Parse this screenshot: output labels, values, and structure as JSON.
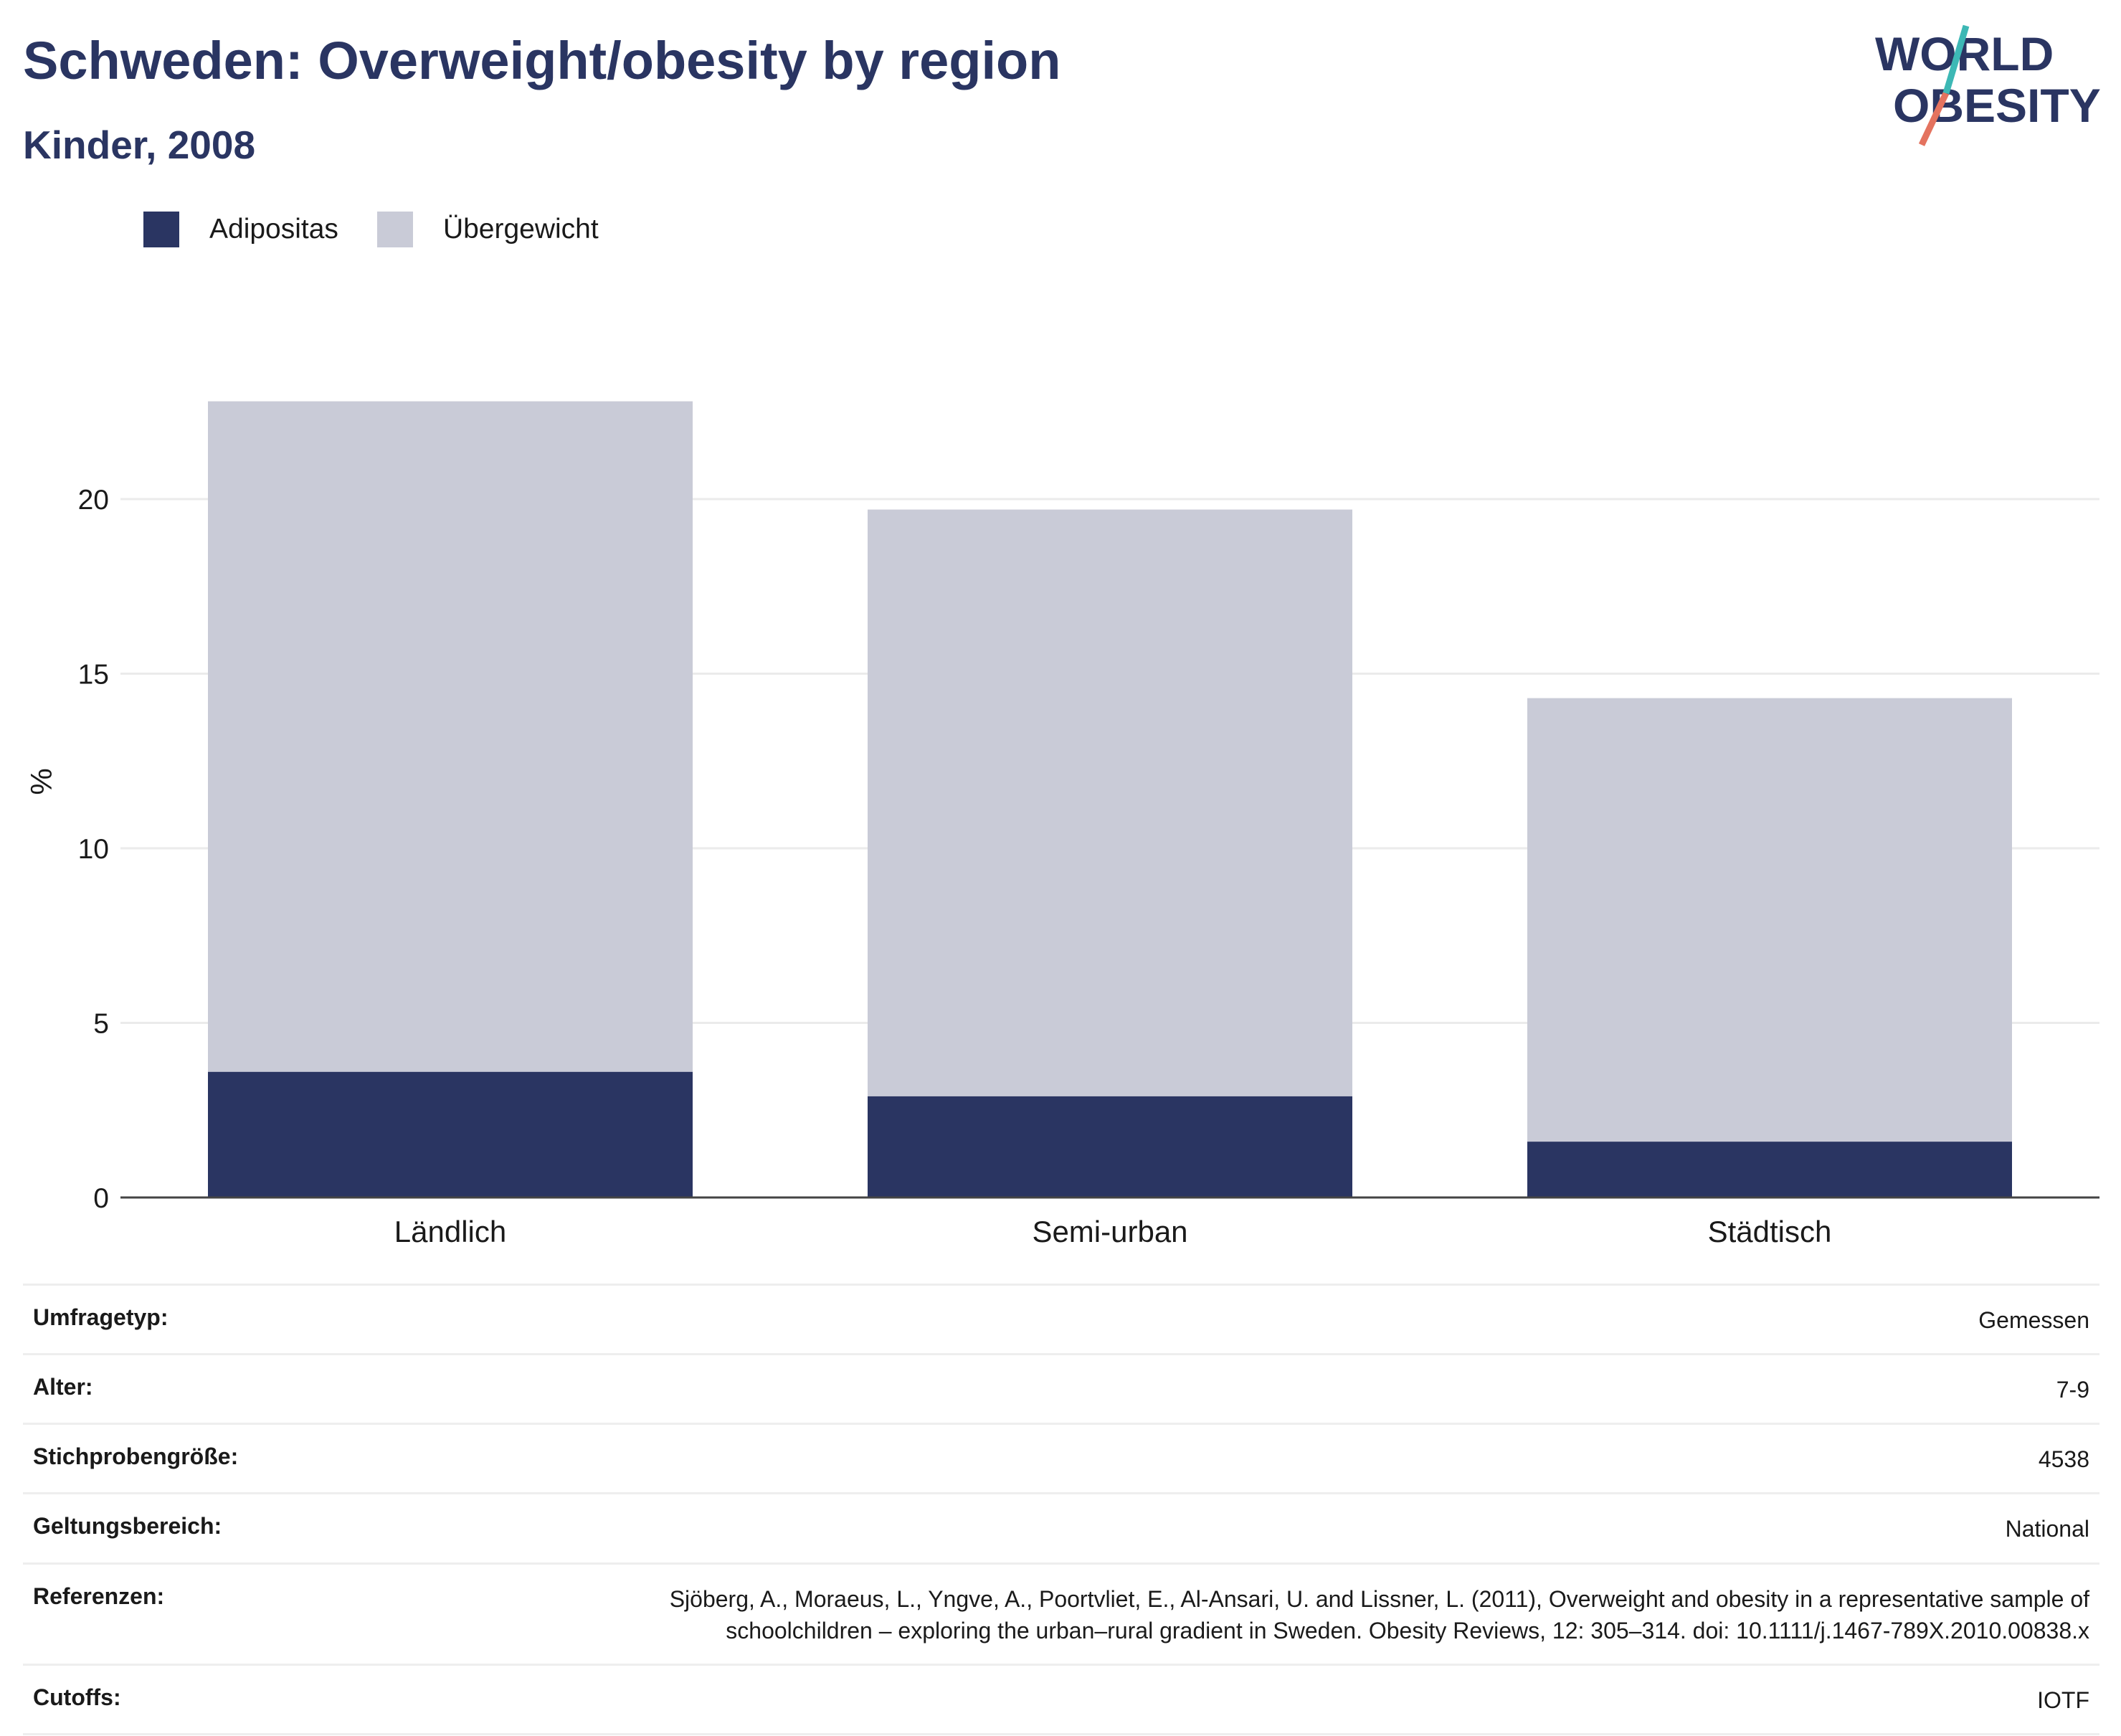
{
  "header": {
    "title": "Schweden: Overweight/obesity by region",
    "subtitle": "Kinder, 2008"
  },
  "logo": {
    "line1": "WORLD",
    "line2": "OBESITY"
  },
  "colors": {
    "obesity": "#2a3562",
    "overweight": "#c9cbd7",
    "logo_teal": "#3db8b5",
    "logo_coral": "#e4735f"
  },
  "chart_data": {
    "type": "bar",
    "stacked": true,
    "categories": [
      "Ländlich",
      "Semi-urban",
      "Städtisch"
    ],
    "series": [
      {
        "name": "Adipositas",
        "values": [
          3.6,
          2.9,
          1.6
        ],
        "color": "#2a3562"
      },
      {
        "name": "Übergewicht",
        "values": [
          19.2,
          16.8,
          12.7
        ],
        "color": "#c9cbd7"
      }
    ],
    "totals": [
      22.8,
      19.7,
      14.3
    ],
    "ylabel": "%",
    "xlabel": "",
    "ylim": [
      0,
      24
    ],
    "yticks": [
      0,
      5,
      10,
      15,
      20
    ],
    "grid": true,
    "legend_position": "top-left"
  },
  "info": [
    {
      "key": "Umfragetyp:",
      "value": "Gemessen"
    },
    {
      "key": "Alter:",
      "value": "7-9"
    },
    {
      "key": "Stichprobengröße:",
      "value": "4538"
    },
    {
      "key": "Geltungsbereich:",
      "value": "National"
    },
    {
      "key": "Referenzen:",
      "value": "Sjöberg, A., Moraeus, L., Yngve, A., Poortvliet, E., Al-Ansari, U. and Lissner, L. (2011), Overweight and obesity in a representative sample of schoolchildren – exploring the urban–rural gradient in Sweden. Obesity Reviews, 12: 305–314. doi: 10.1111/j.1467-789X.2010.00838.x"
    },
    {
      "key": "Cutoffs:",
      "value": "IOTF"
    }
  ]
}
